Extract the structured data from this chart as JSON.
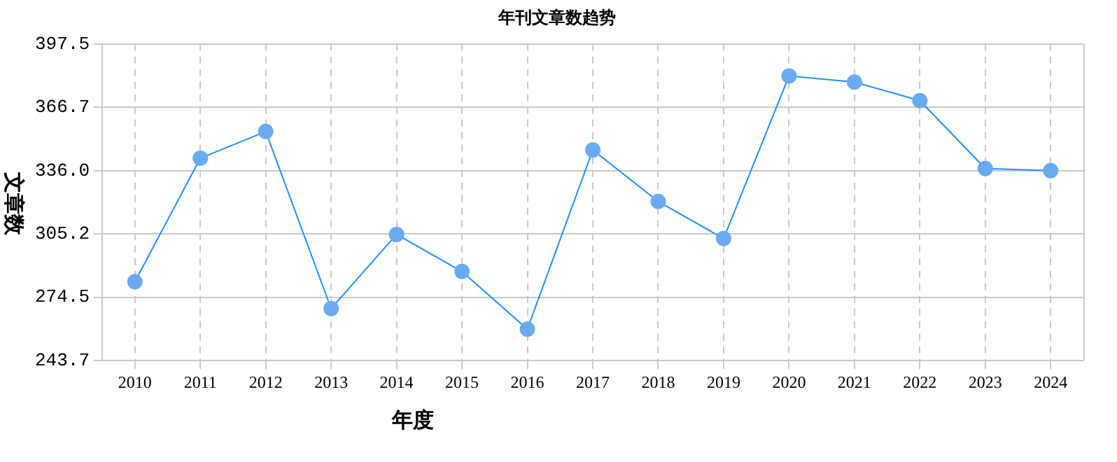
{
  "chart_data": {
    "type": "line",
    "title": "年刊文章数趋势",
    "xlabel": "年度",
    "ylabel": "文章数",
    "categories": [
      "2010",
      "2011",
      "2012",
      "2013",
      "2014",
      "2015",
      "2016",
      "2017",
      "2018",
      "2019",
      "2020",
      "2021",
      "2022",
      "2023",
      "2024"
    ],
    "series": [
      {
        "color": "#1e90ff",
        "values": [
          282,
          342,
          355,
          269,
          305,
          287,
          259,
          346,
          321,
          303,
          382,
          379,
          370,
          337,
          336
        ]
      }
    ],
    "ylim": [
      243.7,
      397.5
    ],
    "yticks": [
      243.7,
      274.5,
      305.2,
      {
        "value": 336,
        "label": "336.0"
      },
      366.7,
      397.5
    ],
    "grid": true,
    "legend": false,
    "marker": "circle",
    "line_style": "solid"
  }
}
